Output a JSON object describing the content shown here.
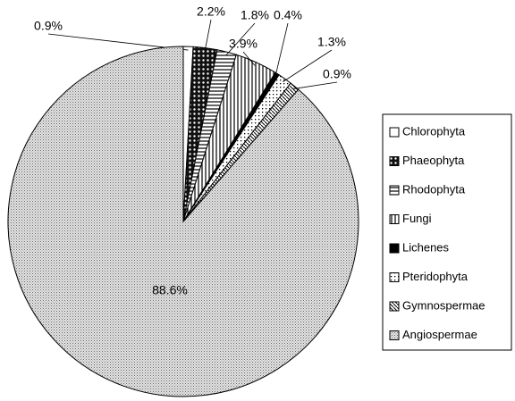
{
  "chart_data": {
    "type": "pie",
    "categories": [
      "Chlorophyta",
      "Phaeophyta",
      "Rhodophyta",
      "Fungi",
      "Lichenes",
      "Pteridophyta",
      "Gymnospermae",
      "Angiospermae"
    ],
    "values": [
      0.9,
      2.2,
      1.8,
      3.9,
      0.4,
      1.3,
      0.9,
      88.6
    ],
    "value_labels": [
      "0.9%",
      "2.2%",
      "1.8%",
      "3.9%",
      "0.4%",
      "1.3%",
      "0.9%",
      "88.6%"
    ],
    "legend": "right"
  }
}
